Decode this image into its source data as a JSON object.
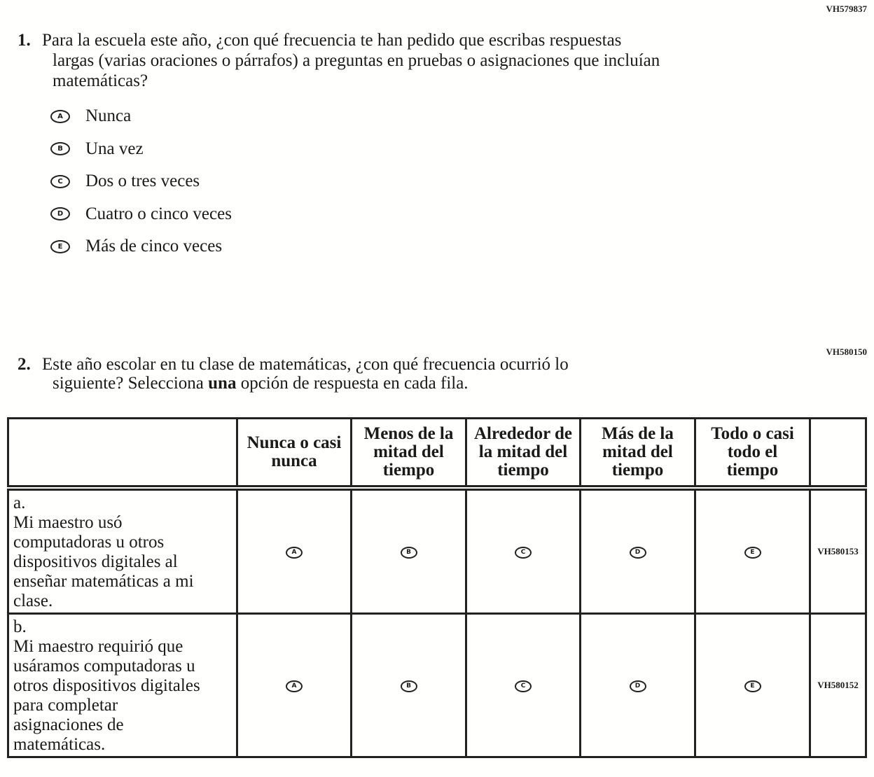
{
  "q1": {
    "code": "VH579837",
    "number": "1.",
    "line1": "Para la escuela este año, ¿con qué frecuencia te han pedido que escribas respuestas",
    "rest": "largas (varias oraciones o párrafos) a preguntas en pruebas o asignaciones que incluían matemáticas?",
    "options": [
      {
        "letter": "A",
        "label": "Nunca"
      },
      {
        "letter": "B",
        "label": "Una vez"
      },
      {
        "letter": "C",
        "label": "Dos o tres veces"
      },
      {
        "letter": "D",
        "label": "Cuatro o cinco veces"
      },
      {
        "letter": "E",
        "label": "Más de cinco veces"
      }
    ]
  },
  "q2": {
    "code": "VH580150",
    "number": "2.",
    "line1": "Este año escolar en tu clase de matemáticas, ¿con qué frecuencia ocurrió lo",
    "rest_before": "siguiente? Selecciona ",
    "rest_bold": "una",
    "rest_after": " opción de respuesta en cada fila.",
    "columns": [
      "Nunca o casi nunca",
      "Menos de la mitad del tiempo",
      "Alrededor de la mitad del tiempo",
      "Más de la mitad del tiempo",
      "Todo o casi todo el tiempo"
    ],
    "letters": [
      "A",
      "B",
      "C",
      "D",
      "E"
    ],
    "rows": [
      {
        "label": "a.",
        "text": "Mi maestro usó computadoras u otros dispositivos digitales al enseñar matemáticas a mi clase.",
        "code": "VH580153"
      },
      {
        "label": "b.",
        "text": "Mi maestro requirió que usáramos computadoras u otros dispositivos digitales para completar asignaciones de matemáticas.",
        "code": "VH580152"
      }
    ]
  }
}
